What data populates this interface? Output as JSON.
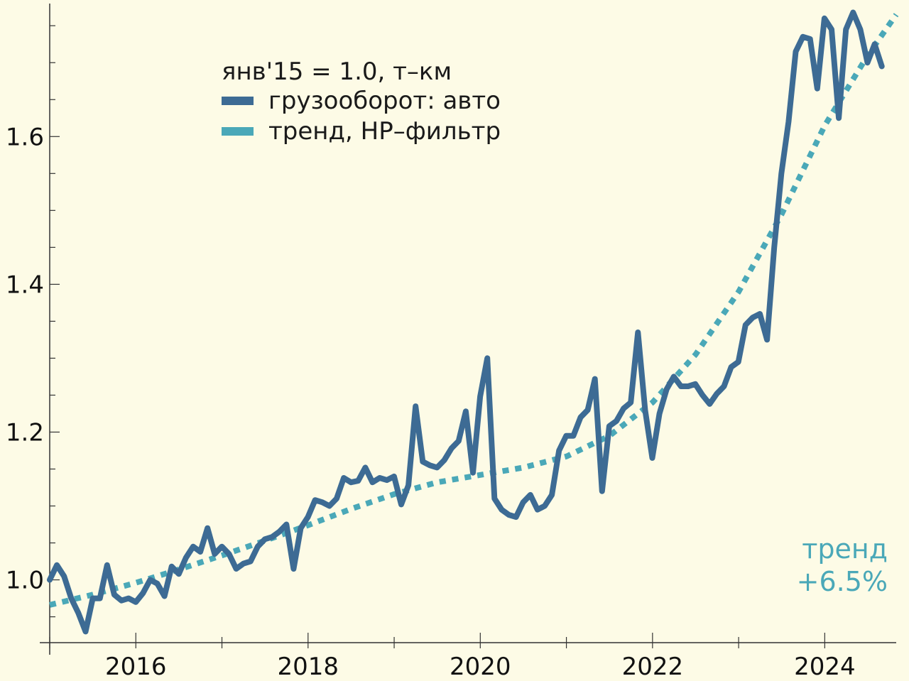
{
  "chart_data": {
    "type": "line",
    "title": "янв'15 = 1.0, т–км",
    "xlabel": "",
    "ylabel": "",
    "xlim": [
      2015.0,
      2024.83
    ],
    "ylim": [
      0.915,
      1.78
    ],
    "x_ticks": [
      2016,
      2018,
      2020,
      2022,
      2024
    ],
    "x_tick_labels": [
      "2016",
      "2018",
      "2020",
      "2022",
      "2024"
    ],
    "y_ticks": [
      1.0,
      1.2,
      1.4,
      1.6
    ],
    "y_tick_labels": [
      "1.0",
      "1.2",
      "1.4",
      "1.6"
    ],
    "legend": [
      "грузооборот: авто",
      "тренд, HP–фильтр"
    ],
    "colors": {
      "series": "#3d6b94",
      "trend": "#4aa8b8",
      "axis": "#333333",
      "background": "#fdfbe6"
    },
    "annotation": {
      "line1": "тренд",
      "line2": "+6.5%"
    },
    "series": [
      {
        "name": "грузооборот: авто",
        "start": 2015.0,
        "step": 0.0833,
        "values": [
          1.0,
          1.02,
          1.005,
          0.975,
          0.955,
          0.93,
          0.975,
          0.975,
          1.02,
          0.98,
          0.972,
          0.975,
          0.97,
          0.982,
          1.0,
          0.995,
          0.978,
          1.018,
          1.008,
          1.03,
          1.045,
          1.038,
          1.07,
          1.035,
          1.045,
          1.035,
          1.015,
          1.022,
          1.025,
          1.045,
          1.055,
          1.058,
          1.065,
          1.075,
          1.015,
          1.07,
          1.085,
          1.108,
          1.105,
          1.1,
          1.11,
          1.138,
          1.132,
          1.134,
          1.152,
          1.132,
          1.138,
          1.135,
          1.14,
          1.102,
          1.128,
          1.235,
          1.16,
          1.155,
          1.152,
          1.162,
          1.178,
          1.188,
          1.228,
          1.145,
          1.248,
          1.3,
          1.11,
          1.095,
          1.088,
          1.085,
          1.105,
          1.115,
          1.095,
          1.1,
          1.115,
          1.175,
          1.195,
          1.195,
          1.22,
          1.23,
          1.272,
          1.12,
          1.208,
          1.215,
          1.232,
          1.24,
          1.335,
          1.23,
          1.165,
          1.225,
          1.258,
          1.275,
          1.262,
          1.262,
          1.265,
          1.25,
          1.238,
          1.252,
          1.262,
          1.288,
          1.295,
          1.345,
          1.355,
          1.36,
          1.325,
          1.45,
          1.55,
          1.62,
          1.715,
          1.735,
          1.732,
          1.665,
          1.76,
          1.745,
          1.625,
          1.745,
          1.768,
          1.745,
          1.7,
          1.725,
          1.695
        ]
      },
      {
        "name": "тренд, HP–фильтр",
        "x": [
          2015.0,
          2015.5,
          2016.0,
          2016.5,
          2017.0,
          2017.5,
          2018.0,
          2018.5,
          2019.0,
          2019.5,
          2020.0,
          2020.5,
          2021.0,
          2021.5,
          2022.0,
          2022.5,
          2023.0,
          2023.5,
          2024.0,
          2024.5,
          2024.83
        ],
        "values": [
          0.966,
          0.98,
          0.996,
          1.014,
          1.033,
          1.053,
          1.074,
          1.096,
          1.116,
          1.132,
          1.142,
          1.152,
          1.167,
          1.195,
          1.24,
          1.305,
          1.39,
          1.495,
          1.615,
          1.71,
          1.765
        ]
      }
    ]
  }
}
